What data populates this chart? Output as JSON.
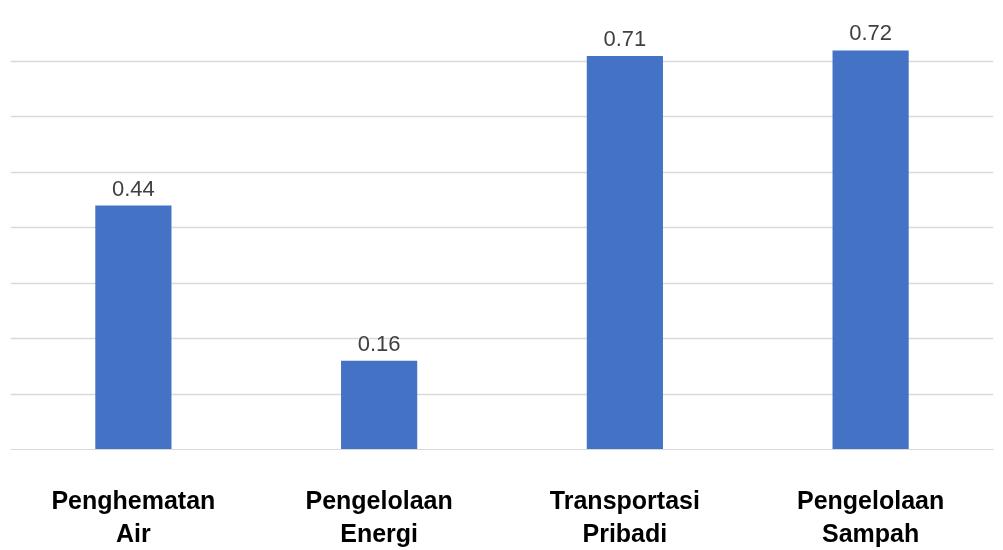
{
  "chart_data": {
    "type": "bar",
    "categories": [
      "Penghematan Air",
      "Pengelolaan Energi",
      "Transportasi Pribadi",
      "Pengelolaan Sampah"
    ],
    "values": [
      0.44,
      0.16,
      0.71,
      0.72
    ],
    "color": "#4472c4",
    "data_labels": true,
    "grid": "y",
    "tick_labels": "x"
  }
}
